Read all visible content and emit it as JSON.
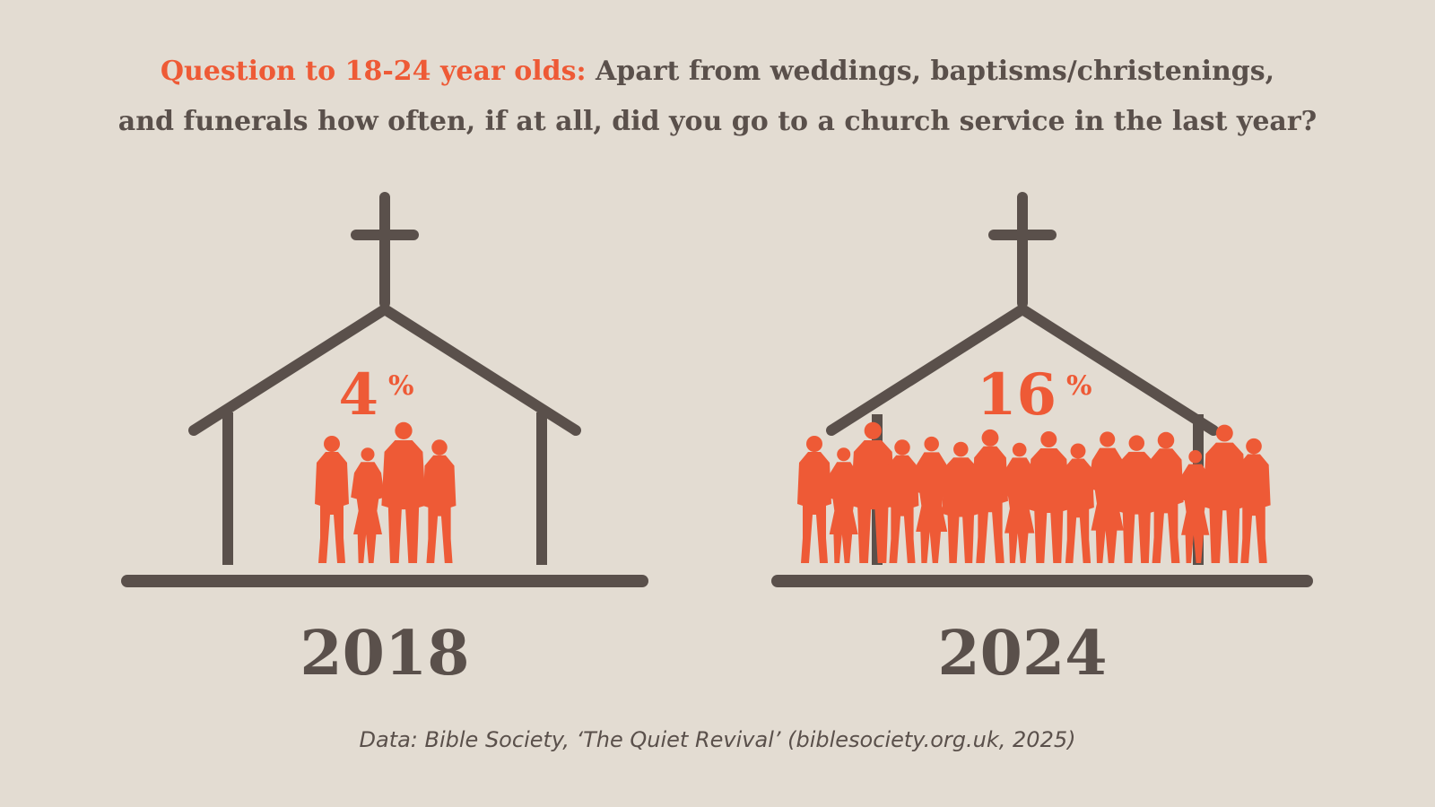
{
  "title": {
    "lead": "Question to 18-24 year olds:",
    "line1": "Apart from weddings, baptisms/christenings,",
    "line2": "and funerals how often, if at all, did you go to a church service in the last year?"
  },
  "source": "Data: Bible Society, ‘The Quiet Revival’ (biblesociety.org.uk, 2025)",
  "colors": {
    "accent": "#ee5a36",
    "structure": "#5a504b",
    "background": "#e3dcd2"
  },
  "chart_data": {
    "type": "bar",
    "categories": [
      "2018",
      "2024"
    ],
    "values": [
      4,
      16
    ],
    "value_suffix": "%",
    "title": "",
    "xlabel": "",
    "ylabel": "",
    "ylim": [
      0,
      100
    ],
    "grid": false,
    "legend": "none",
    "representation": "church-icon filled with people silhouettes (pictogram count scales with value)"
  }
}
